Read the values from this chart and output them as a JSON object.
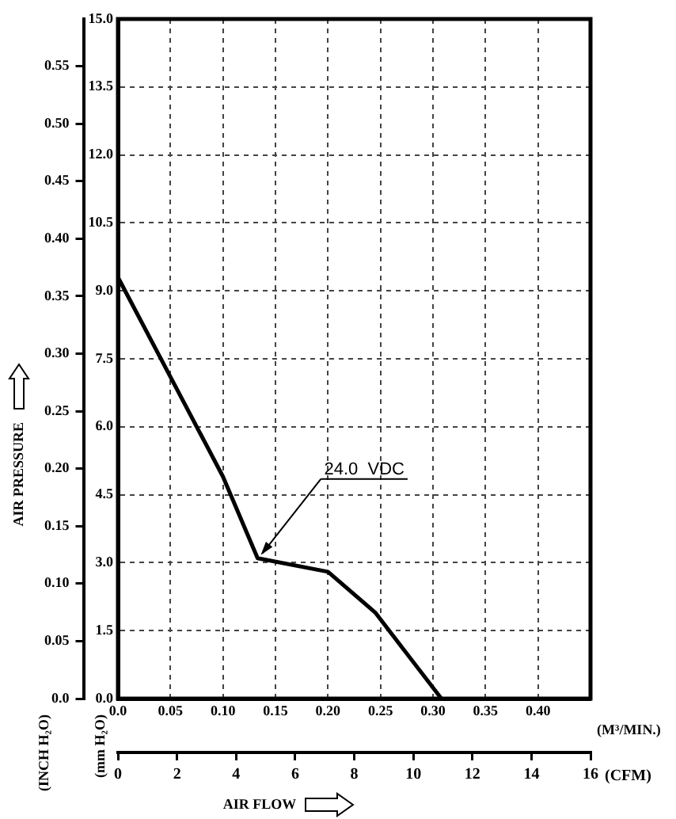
{
  "chart_data": {
    "type": "line",
    "xlabel": "(M³/MIN.)",
    "x2label": "(CFM)",
    "ylabel": "(mm H₂O)",
    "y2label": "(INCH H₂O)",
    "annotations": [
      {
        "text": "24.0  VDC",
        "x": 0.133,
        "y": 3.1
      },
      "AIR PRESSURE",
      "AIR FLOW"
    ],
    "x": [
      0,
      0.05,
      0.1,
      0.133,
      0.2,
      0.245,
      0.308
    ],
    "series": [
      {
        "color": "#000000",
        "values": [
          9.3,
          7.1,
          4.9,
          3.1,
          2.8,
          1.9,
          0
        ]
      }
    ],
    "xlim": [
      0,
      0.45
    ],
    "xticks": [
      {
        "value": 0,
        "label": "0.0"
      },
      0.05,
      {
        "value": 0.1,
        "label": "0.10"
      },
      0.15,
      {
        "value": 0.2,
        "label": "0.20"
      },
      0.25,
      {
        "value": 0.3,
        "label": "0.30"
      },
      0.35,
      {
        "value": 0.4,
        "label": "0.40"
      }
    ],
    "x2lim": [
      0,
      16
    ],
    "x2ticks": [
      0,
      2,
      4,
      6,
      8,
      10,
      12,
      14,
      16
    ],
    "ylim": [
      0,
      15
    ],
    "yticks": [
      {
        "value": 0,
        "label": "0.0"
      },
      1.5,
      {
        "value": 3,
        "label": "3.0"
      },
      4.5,
      {
        "value": 6,
        "label": "6.0"
      },
      7.5,
      {
        "value": 9,
        "label": "9.0"
      },
      10.5,
      {
        "value": 12,
        "label": "12.0"
      },
      13.5,
      {
        "value": 15,
        "label": "15.0"
      }
    ],
    "y2lim": [
      0,
      0.591
    ],
    "y2ticks": [
      {
        "value": 0,
        "label": "0.0"
      },
      0.05,
      {
        "value": 0.1,
        "label": "0.10"
      },
      0.15,
      {
        "value": 0.2,
        "label": "0.20"
      },
      0.25,
      {
        "value": 0.3,
        "label": "0.30"
      },
      0.35,
      {
        "value": 0.4,
        "label": "0.40"
      },
      0.45,
      {
        "value": 0.5,
        "label": "0.50"
      },
      0.55
    ],
    "grid": true,
    "marker": "none",
    "line_style": "solid"
  }
}
